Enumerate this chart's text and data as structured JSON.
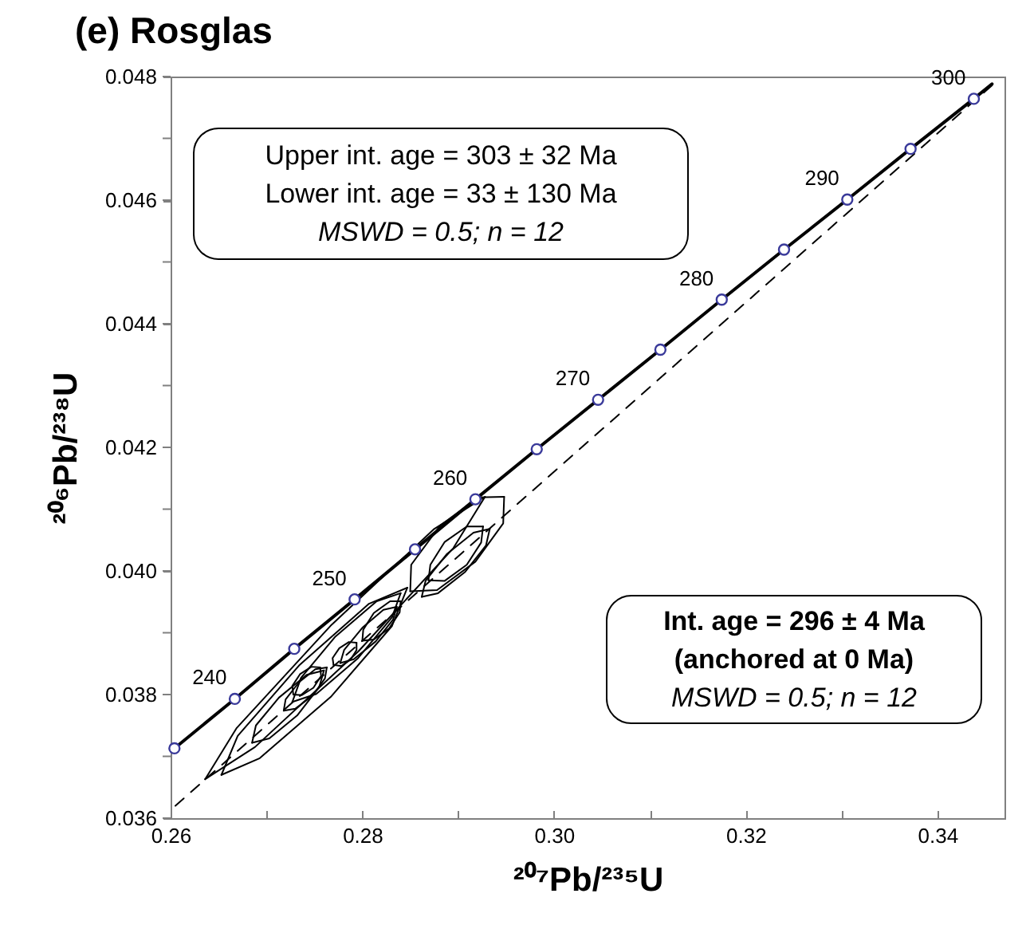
{
  "chart_data": {
    "type": "line",
    "title": "(e) Rosglas",
    "xlabel": "²⁰⁷Pb/²³⁵U",
    "ylabel": "²⁰⁶Pb/²³⁸U",
    "xlim": [
      0.26,
      0.347
    ],
    "ylim": [
      0.036,
      0.048
    ],
    "xticks": [
      0.26,
      {
        "value": 0.27,
        "label": null
      },
      0.28,
      {
        "value": 0.29,
        "label": null
      },
      {
        "value": 0.3,
        "label": "0.30"
      },
      {
        "value": 0.31,
        "label": null
      },
      0.32,
      {
        "value": 0.33,
        "label": null
      },
      0.34
    ],
    "yticks": [
      0.036,
      {
        "value": 0.037,
        "label": null
      },
      0.038,
      {
        "value": 0.039,
        "label": null
      },
      {
        "value": 0.04,
        "label": "0.040"
      },
      {
        "value": 0.041,
        "label": null
      },
      0.042,
      {
        "value": 0.043,
        "label": null
      },
      0.044,
      {
        "value": 0.045,
        "label": null
      },
      0.046,
      {
        "value": 0.047,
        "label": null
      },
      0.048
    ],
    "grid": false,
    "series": [
      {
        "color": "#000000",
        "x": [
          0.2604,
          0.2667,
          0.2729,
          0.2792,
          0.2855,
          0.2918,
          0.2982,
          0.3046,
          0.3111,
          0.3175,
          0.324,
          0.3306,
          0.3372,
          0.3438,
          0.3457
        ],
        "values": [
          0.03713,
          0.03793,
          0.03874,
          0.03954,
          0.04035,
          0.04116,
          0.04197,
          0.04277,
          0.04358,
          0.04439,
          0.0452,
          0.04601,
          0.04683,
          0.04764,
          0.04788
        ]
      },
      {
        "type": "line",
        "color": "#000000",
        "line_style": "dashed",
        "x": [
          0.2605,
          0.346
        ],
        "values": [
          0.0362,
          0.0479
        ]
      },
      {
        "type": "line",
        "color": "#000000",
        "x": [
          0.2636,
          0.2669,
          0.2768,
          0.2875,
          0.2928
        ],
        "values": [
          0.03663,
          0.03746,
          0.03913,
          0.04068,
          0.0412
        ]
      },
      {
        "type": "line",
        "color": "#000000",
        "x": [
          0.2636,
          0.2688,
          0.2796,
          0.2895,
          0.2928
        ],
        "values": [
          0.03663,
          0.03715,
          0.0387,
          0.04037,
          0.0412
        ]
      },
      {
        "type": "line",
        "color": "#000000",
        "x": [
          0.2653,
          0.267,
          0.2734,
          0.2807,
          0.2847
        ],
        "values": [
          0.0367,
          0.03733,
          0.03847,
          0.03947,
          0.03973
        ]
      },
      {
        "type": "line",
        "color": "#000000",
        "x": [
          0.2653,
          0.2693,
          0.2767,
          0.2831,
          0.2847
        ],
        "values": [
          0.0367,
          0.03697,
          0.03796,
          0.03911,
          0.03973
        ]
      },
      {
        "type": "line",
        "color": "#000000",
        "x": [
          0.2685,
          0.2689,
          0.2713,
          0.2742,
          0.276
        ],
        "values": [
          0.03722,
          0.0375,
          0.03795,
          0.03832,
          0.03839
        ]
      },
      {
        "type": "line",
        "color": "#000000",
        "x": [
          0.2685,
          0.2703,
          0.2732,
          0.2755,
          0.276
        ],
        "values": [
          0.03722,
          0.03729,
          0.03766,
          0.03812,
          0.03839
        ]
      },
      {
        "type": "line",
        "color": "#000000",
        "x": [
          0.2718,
          0.272,
          0.2734,
          0.2751,
          0.2763
        ],
        "values": [
          0.03774,
          0.03792,
          0.0382,
          0.03841,
          0.03844
        ]
      },
      {
        "type": "line",
        "color": "#000000",
        "x": [
          0.2718,
          0.273,
          0.2748,
          0.2761,
          0.2763
        ],
        "values": [
          0.03774,
          0.03777,
          0.03798,
          0.03826,
          0.03844
        ]
      },
      {
        "type": "line",
        "color": "#000000",
        "x": [
          0.2727,
          0.2736,
          0.2772,
          0.2815,
          0.284
        ],
        "values": [
          0.03788,
          0.03827,
          0.03894,
          0.03951,
          0.03964
        ]
      },
      {
        "type": "line",
        "color": "#000000",
        "x": [
          0.2727,
          0.2752,
          0.2795,
          0.2831,
          0.284
        ],
        "values": [
          0.03788,
          0.03801,
          0.03858,
          0.03925,
          0.03964
        ]
      },
      {
        "type": "line",
        "color": "#000000",
        "x": [
          0.277,
          0.2769,
          0.2776,
          0.2786,
          0.2794
        ],
        "values": [
          0.03848,
          0.03859,
          0.03875,
          0.03885,
          0.03884
        ]
      },
      {
        "type": "line",
        "color": "#000000",
        "x": [
          0.277,
          0.2778,
          0.2788,
          0.2794,
          0.2794
        ],
        "values": [
          0.03848,
          0.03846,
          0.03857,
          0.03872,
          0.03884
        ]
      },
      {
        "type": "line",
        "color": "#000000",
        "x": [
          0.28,
          0.2801,
          0.2812,
          0.2829,
          0.284
        ],
        "values": [
          0.03887,
          0.03905,
          0.03932,
          0.03951,
          0.03951
        ]
      },
      {
        "type": "line",
        "color": "#000000",
        "x": [
          0.28,
          0.2812,
          0.2828,
          0.2839,
          0.284
        ],
        "values": [
          0.03887,
          0.03889,
          0.03907,
          0.03933,
          0.03951
        ]
      },
      {
        "type": "line",
        "color": "#000000",
        "x": [
          0.285,
          0.2851,
          0.2881,
          0.2921,
          0.2948
        ],
        "values": [
          0.03967,
          0.0401,
          0.04073,
          0.04119,
          0.0412
        ]
      },
      {
        "type": "line",
        "color": "#000000",
        "x": [
          0.285,
          0.2878,
          0.2918,
          0.2947,
          0.2948
        ],
        "values": [
          0.03967,
          0.03969,
          0.04015,
          0.04077,
          0.0412
        ]
      },
      {
        "type": "line",
        "color": "#000000",
        "x": [
          0.2862,
          0.2866,
          0.2888,
          0.2916,
          0.2933
        ],
        "values": [
          0.03958,
          0.03984,
          0.04027,
          0.04062,
          0.04068
        ]
      },
      {
        "type": "line",
        "color": "#000000",
        "x": [
          0.2862,
          0.2879,
          0.2907,
          0.2929,
          0.2933
        ],
        "values": [
          0.03958,
          0.03964,
          0.03998,
          0.04041,
          0.04068
        ]
      },
      {
        "type": "line",
        "color": "#000000",
        "x": [
          0.2869,
          0.2871,
          0.2886,
          0.2909,
          0.2926
        ],
        "values": [
          0.03985,
          0.0401,
          0.04047,
          0.04072,
          0.04072
        ]
      },
      {
        "type": "line",
        "color": "#000000",
        "x": [
          0.2869,
          0.2886,
          0.2909,
          0.2924,
          0.2926
        ],
        "values": [
          0.03985,
          0.03984,
          0.0401,
          0.04046,
          0.04072
        ]
      },
      {
        "type": "line",
        "color": "#000000",
        "x": [
          0.2728,
          0.2727,
          0.2735,
          0.2747,
          0.2756
        ],
        "values": [
          0.038,
          0.03814,
          0.03833,
          0.03845,
          0.03844
        ]
      },
      {
        "type": "line",
        "color": "#000000",
        "x": [
          0.2728,
          0.2737,
          0.2749,
          0.2757,
          0.2756
        ],
        "values": [
          0.038,
          0.03799,
          0.03811,
          0.0383,
          0.03844
        ]
      },
      {
        "type": "line",
        "color": "#000000",
        "x": [
          0.2777,
          0.2781,
          0.28,
          0.2822,
          0.2836
        ],
        "values": [
          0.03851,
          0.03872,
          0.03908,
          0.03937,
          0.03942
        ]
      },
      {
        "type": "line",
        "color": "#000000",
        "x": [
          0.2777,
          0.2791,
          0.2814,
          0.2832,
          0.2836
        ],
        "values": [
          0.03851,
          0.03857,
          0.03886,
          0.03921,
          0.03942
        ]
      },
      {
        "type": "scatter",
        "marker": "circle",
        "color": "#3a3a9a",
        "x": [
          0.2604,
          0.2667,
          0.2729,
          0.2792,
          0.2855,
          0.2918,
          0.2982,
          0.3046,
          0.3111,
          0.3175,
          0.324,
          0.3306,
          0.3372,
          0.3438
        ],
        "values": [
          0.03713,
          0.03793,
          0.03874,
          0.03954,
          0.04035,
          0.04116,
          0.04197,
          0.04277,
          0.04358,
          0.04439,
          0.0452,
          0.04601,
          0.04683,
          0.04764
        ]
      }
    ],
    "annotations": [
      "Upper int. age = 303 ± 32 Ma",
      "Lower int. age = 33 ± 130 Ma",
      "MSWD = 0.5; n = 12",
      "Int. age = 296 ± 4 Ma",
      "(anchored at 0 Ma)",
      "MSWD = 0.5; n = 12",
      {
        "text": "240",
        "x": 0.2667,
        "y": 0.03793
      },
      {
        "text": "250",
        "x": 0.2792,
        "y": 0.03954
      },
      {
        "text": "260",
        "x": 0.2918,
        "y": 0.04116
      },
      {
        "text": "270",
        "x": 0.3046,
        "y": 0.04277
      },
      {
        "text": "280",
        "x": 0.3175,
        "y": 0.04439
      },
      {
        "text": "290",
        "x": 0.3306,
        "y": 0.04601
      },
      {
        "text": "300",
        "x": 0.3438,
        "y": 0.04764
      }
    ]
  }
}
